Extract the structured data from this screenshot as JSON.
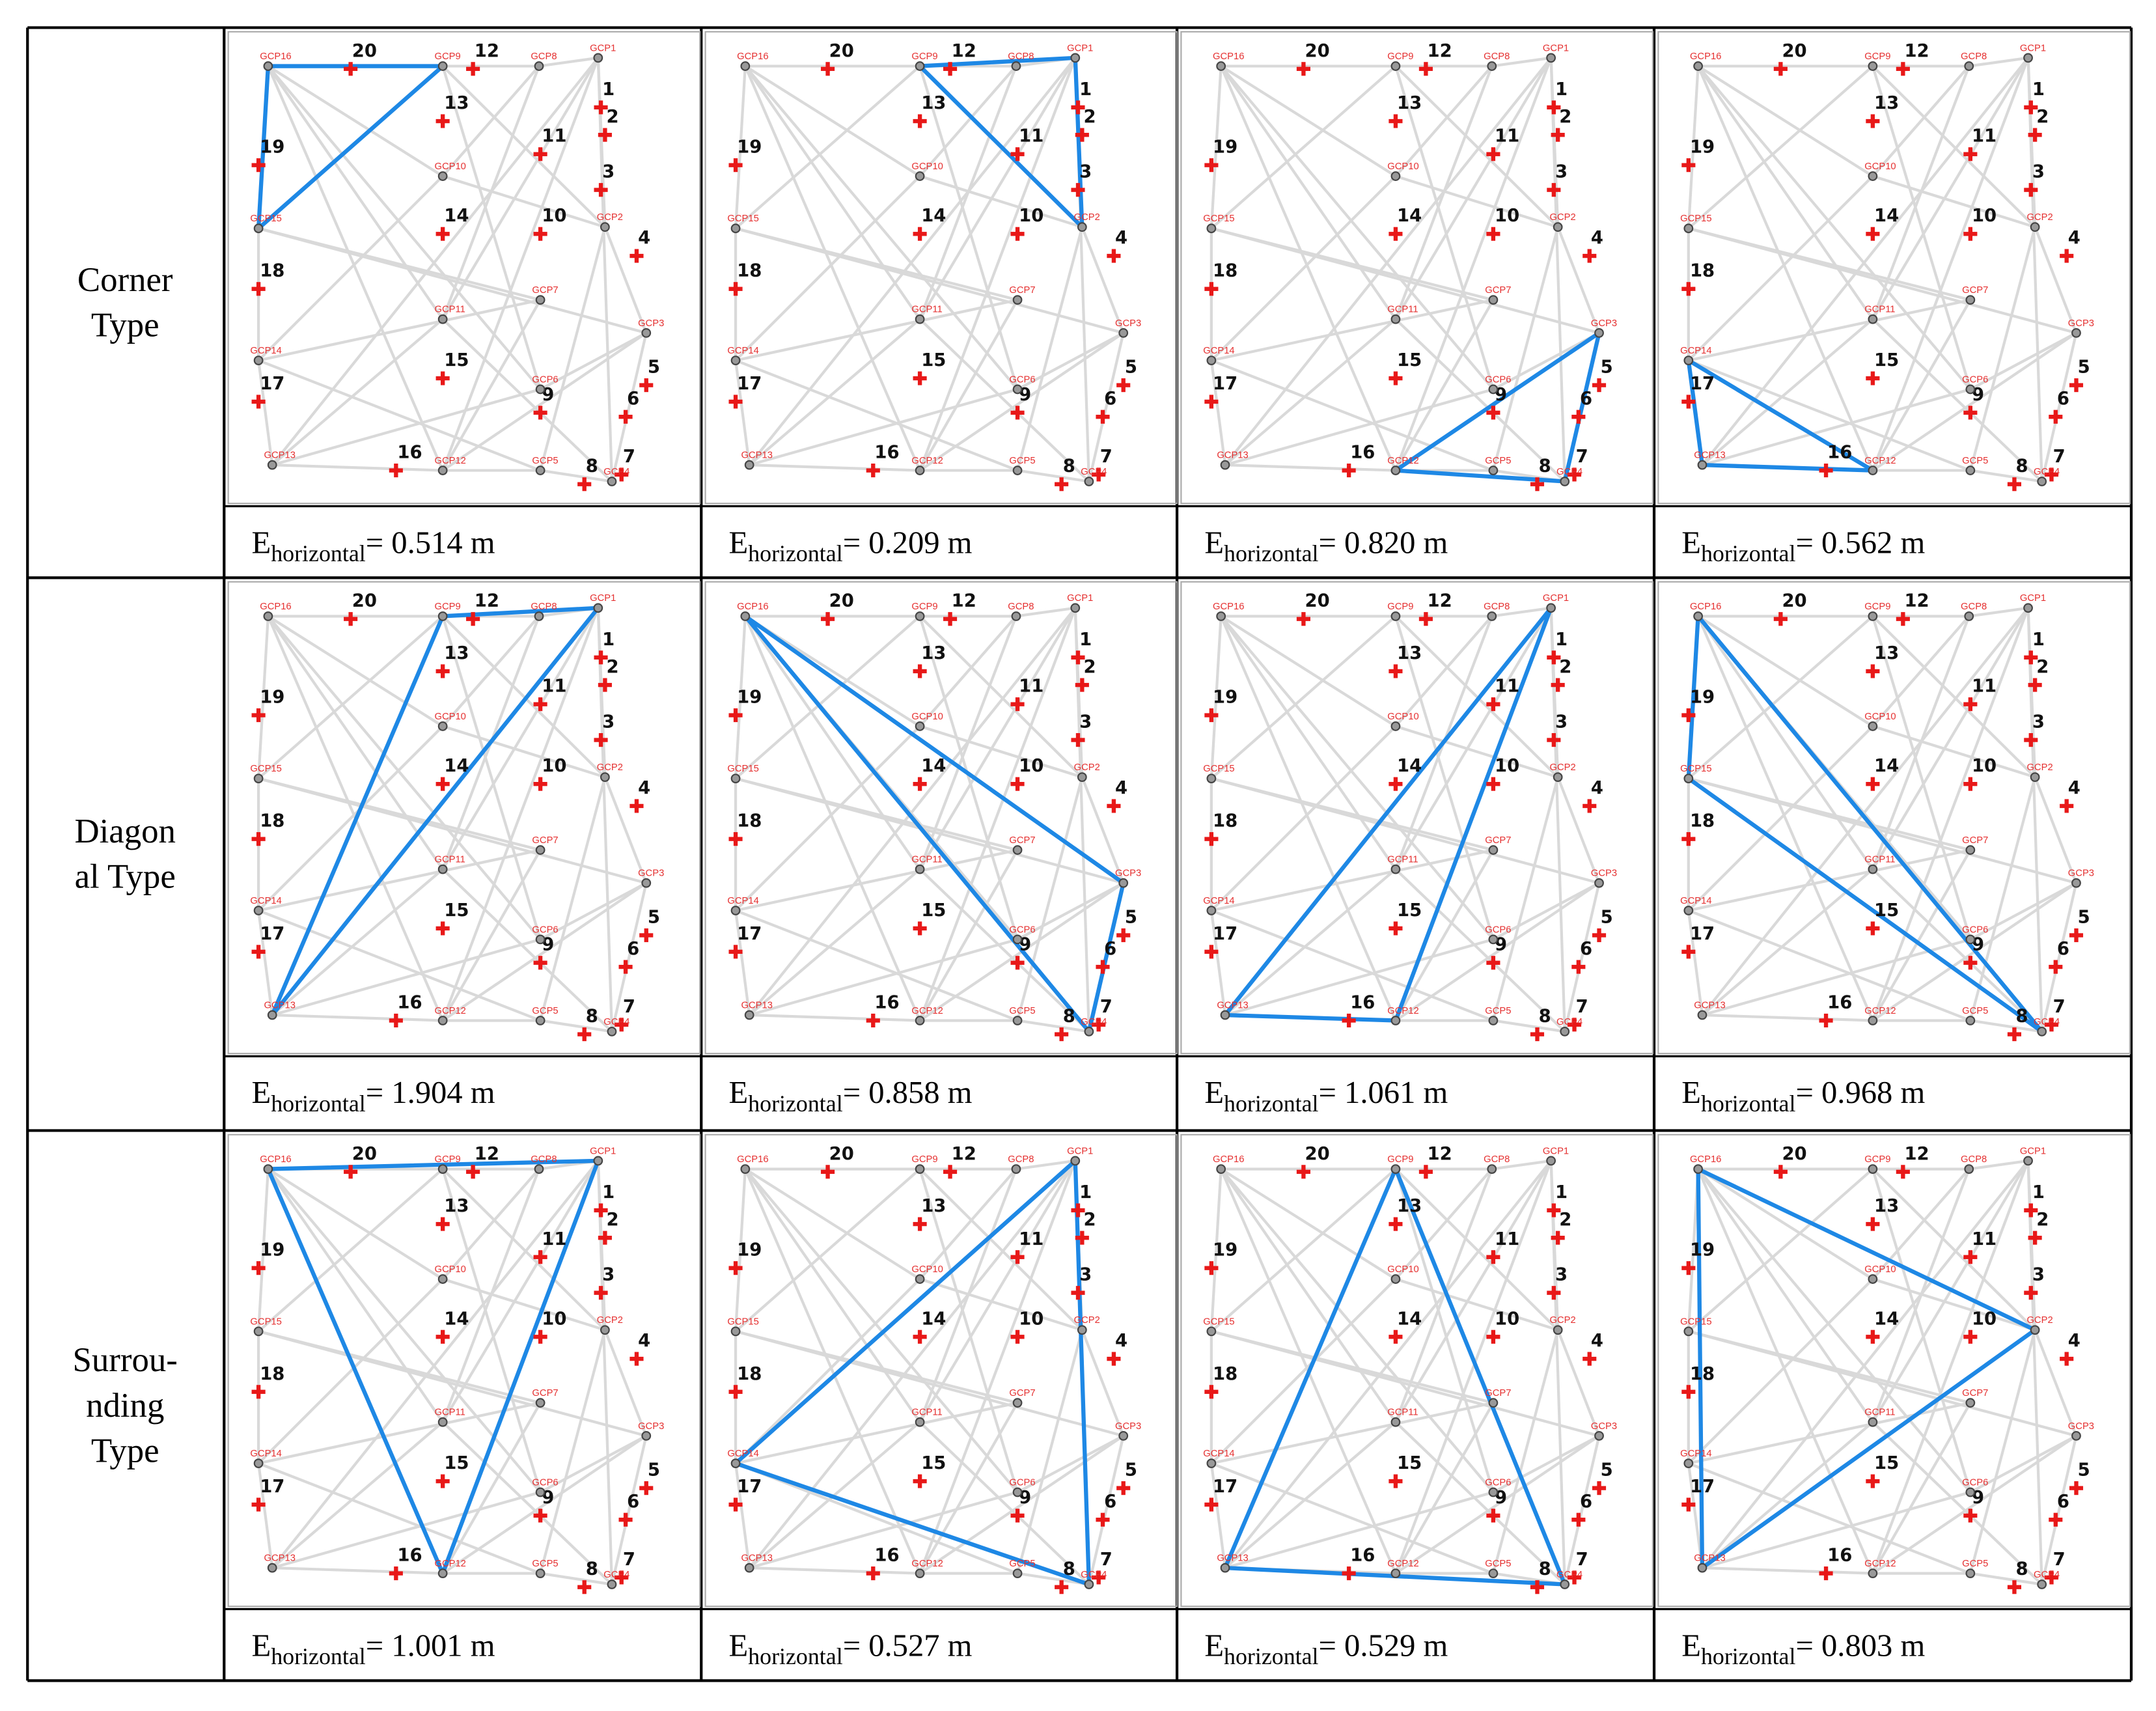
{
  "gcps": [
    "GCP1",
    "GCP2",
    "GCP3",
    "GCP4",
    "GCP5",
    "GCP6",
    "GCP7",
    "GCP8",
    "GCP9",
    "GCP10",
    "GCP11",
    "GCP12",
    "GCP13",
    "GCP14",
    "GCP15",
    "GCP16"
  ],
  "checkpoints": [
    "1",
    "2",
    "3",
    "4",
    "5",
    "6",
    "7",
    "8",
    "9",
    "10",
    "11",
    "12",
    "13",
    "14",
    "15",
    "16",
    "17",
    "18",
    "19",
    "20"
  ],
  "error_symbol": "E",
  "error_subscript": "horizontal",
  "rows": [
    {
      "label": [
        "Corner",
        "Type"
      ],
      "panels": [
        {
          "triangle": [
            "GCP16",
            "GCP9",
            "GCP15"
          ],
          "error": "= 0.514 m"
        },
        {
          "triangle": [
            "GCP9",
            "GCP1",
            "GCP2"
          ],
          "error": "= 0.209 m"
        },
        {
          "triangle": [
            "GCP12",
            "GCP3",
            "GCP4"
          ],
          "error": "= 0.820 m"
        },
        {
          "triangle": [
            "GCP14",
            "GCP13",
            "GCP12"
          ],
          "error": "= 0.562 m"
        }
      ]
    },
    {
      "label": [
        "Diagon",
        "al Type"
      ],
      "panels": [
        {
          "triangle": [
            "GCP9",
            "GCP1",
            "GCP13"
          ],
          "error": "= 1.904 m"
        },
        {
          "triangle": [
            "GCP16",
            "GCP3",
            "GCP4"
          ],
          "error": "= 0.858 m"
        },
        {
          "triangle": [
            "GCP1",
            "GCP13",
            "GCP12"
          ],
          "error": "= 1.061 m"
        },
        {
          "triangle": [
            "GCP16",
            "GCP15",
            "GCP4"
          ],
          "error": "= 0.968 m"
        }
      ]
    },
    {
      "label": [
        "Surrou-",
        "nding",
        "Type"
      ],
      "panels": [
        {
          "triangle": [
            "GCP16",
            "GCP1",
            "GCP12"
          ],
          "error": "= 1.001 m"
        },
        {
          "triangle": [
            "GCP1",
            "GCP14",
            "GCP4"
          ],
          "error": "= 0.527 m"
        },
        {
          "triangle": [
            "GCP9",
            "GCP13",
            "GCP4"
          ],
          "error": "= 0.529 m"
        },
        {
          "triangle": [
            "GCP16",
            "GCP2",
            "GCP13"
          ],
          "error": "= 0.803 m"
        }
      ]
    }
  ]
}
